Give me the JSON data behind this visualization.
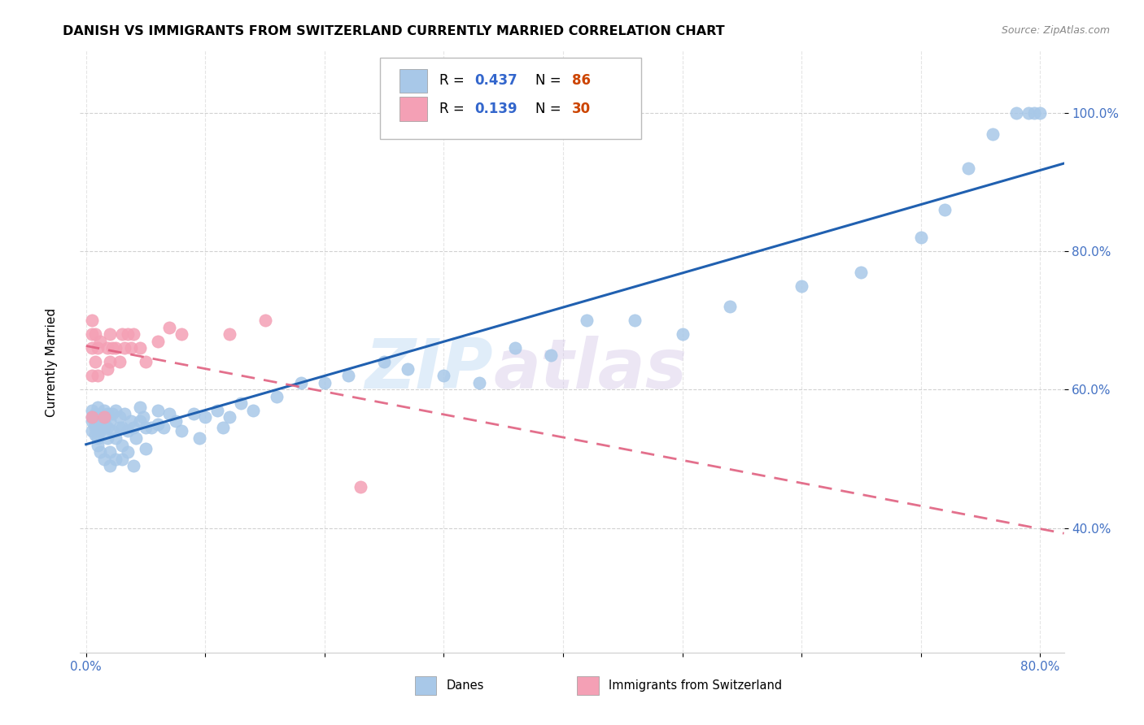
{
  "title": "DANISH VS IMMIGRANTS FROM SWITZERLAND CURRENTLY MARRIED CORRELATION CHART",
  "source": "Source: ZipAtlas.com",
  "ylabel": "Currently Married",
  "ytick_labels": [
    "40.0%",
    "60.0%",
    "80.0%",
    "100.0%"
  ],
  "ytick_values": [
    0.4,
    0.6,
    0.8,
    1.0
  ],
  "xmin": -0.005,
  "xmax": 0.82,
  "ymin": 0.22,
  "ymax": 1.09,
  "blue_color": "#a8c8e8",
  "pink_color": "#f4a0b5",
  "blue_line_color": "#2060b0",
  "pink_line_color": "#e06080",
  "watermark_zip": "ZIP",
  "watermark_atlas": "atlas",
  "danes_x": [
    0.005,
    0.005,
    0.005,
    0.005,
    0.008,
    0.008,
    0.008,
    0.008,
    0.01,
    0.01,
    0.01,
    0.01,
    0.01,
    0.012,
    0.012,
    0.015,
    0.015,
    0.015,
    0.015,
    0.018,
    0.018,
    0.018,
    0.02,
    0.02,
    0.02,
    0.022,
    0.022,
    0.025,
    0.025,
    0.025,
    0.028,
    0.028,
    0.03,
    0.03,
    0.03,
    0.032,
    0.035,
    0.035,
    0.038,
    0.04,
    0.04,
    0.042,
    0.045,
    0.045,
    0.048,
    0.05,
    0.05,
    0.055,
    0.06,
    0.06,
    0.065,
    0.07,
    0.075,
    0.08,
    0.09,
    0.095,
    0.1,
    0.11,
    0.115,
    0.12,
    0.13,
    0.14,
    0.16,
    0.18,
    0.2,
    0.22,
    0.25,
    0.27,
    0.3,
    0.33,
    0.36,
    0.39,
    0.42,
    0.46,
    0.5,
    0.54,
    0.6,
    0.65,
    0.7,
    0.72,
    0.74,
    0.76,
    0.78,
    0.79,
    0.795,
    0.8
  ],
  "danes_y": [
    0.54,
    0.555,
    0.57,
    0.56,
    0.535,
    0.55,
    0.545,
    0.565,
    0.53,
    0.545,
    0.52,
    0.56,
    0.575,
    0.51,
    0.54,
    0.5,
    0.545,
    0.555,
    0.57,
    0.53,
    0.565,
    0.545,
    0.49,
    0.51,
    0.555,
    0.54,
    0.565,
    0.5,
    0.53,
    0.57,
    0.545,
    0.56,
    0.5,
    0.52,
    0.545,
    0.565,
    0.51,
    0.54,
    0.555,
    0.49,
    0.545,
    0.53,
    0.555,
    0.575,
    0.56,
    0.515,
    0.545,
    0.545,
    0.55,
    0.57,
    0.545,
    0.565,
    0.555,
    0.54,
    0.565,
    0.53,
    0.56,
    0.57,
    0.545,
    0.56,
    0.58,
    0.57,
    0.59,
    0.61,
    0.61,
    0.62,
    0.64,
    0.63,
    0.62,
    0.61,
    0.66,
    0.65,
    0.7,
    0.7,
    0.68,
    0.72,
    0.75,
    0.77,
    0.82,
    0.86,
    0.92,
    0.97,
    1.0,
    1.0,
    1.0,
    1.0
  ],
  "swiss_x": [
    0.005,
    0.005,
    0.005,
    0.005,
    0.005,
    0.008,
    0.008,
    0.01,
    0.01,
    0.012,
    0.015,
    0.018,
    0.018,
    0.02,
    0.02,
    0.022,
    0.025,
    0.028,
    0.03,
    0.032,
    0.035,
    0.038,
    0.04,
    0.045,
    0.05,
    0.06,
    0.07,
    0.08,
    0.12,
    0.15,
    0.23
  ],
  "swiss_y": [
    0.56,
    0.62,
    0.66,
    0.68,
    0.7,
    0.64,
    0.68,
    0.62,
    0.66,
    0.67,
    0.56,
    0.63,
    0.66,
    0.64,
    0.68,
    0.66,
    0.66,
    0.64,
    0.68,
    0.66,
    0.68,
    0.66,
    0.68,
    0.66,
    0.64,
    0.67,
    0.69,
    0.68,
    0.68,
    0.7,
    0.46
  ]
}
